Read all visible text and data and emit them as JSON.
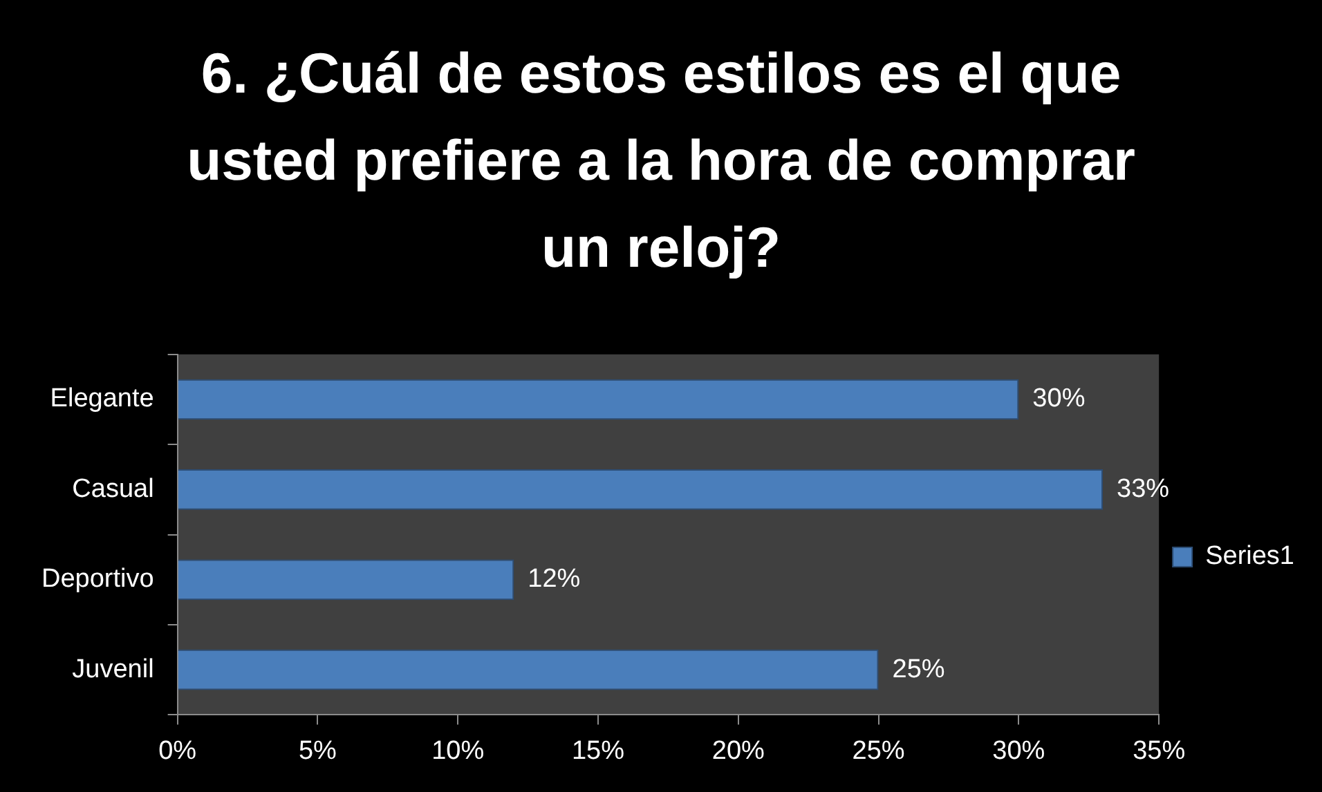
{
  "chart_data": {
    "type": "bar",
    "orientation": "horizontal",
    "title": "6.\t¿Cuál de estos estilos es el que usted prefiere a la hora de comprar un reloj?",
    "categories": [
      "Elegante",
      "Casual",
      "Deportivo",
      "Juvenil"
    ],
    "series": [
      {
        "name": "Series1",
        "color": "#4a7ebb",
        "values": [
          30,
          33,
          12,
          25
        ],
        "value_labels": [
          "30%",
          "33%",
          "12%",
          "25%"
        ]
      }
    ],
    "xlim": [
      0,
      35
    ],
    "xticks": [
      {
        "value": 0,
        "label": "0%"
      },
      {
        "value": 5,
        "label": "5%"
      },
      {
        "value": 10,
        "label": "10%"
      },
      {
        "value": 15,
        "label": "15%"
      },
      {
        "value": 20,
        "label": "20%"
      },
      {
        "value": 25,
        "label": "25%"
      },
      {
        "value": 30,
        "label": "30%"
      },
      {
        "value": 35,
        "label": "35%"
      }
    ],
    "legend": "right"
  }
}
